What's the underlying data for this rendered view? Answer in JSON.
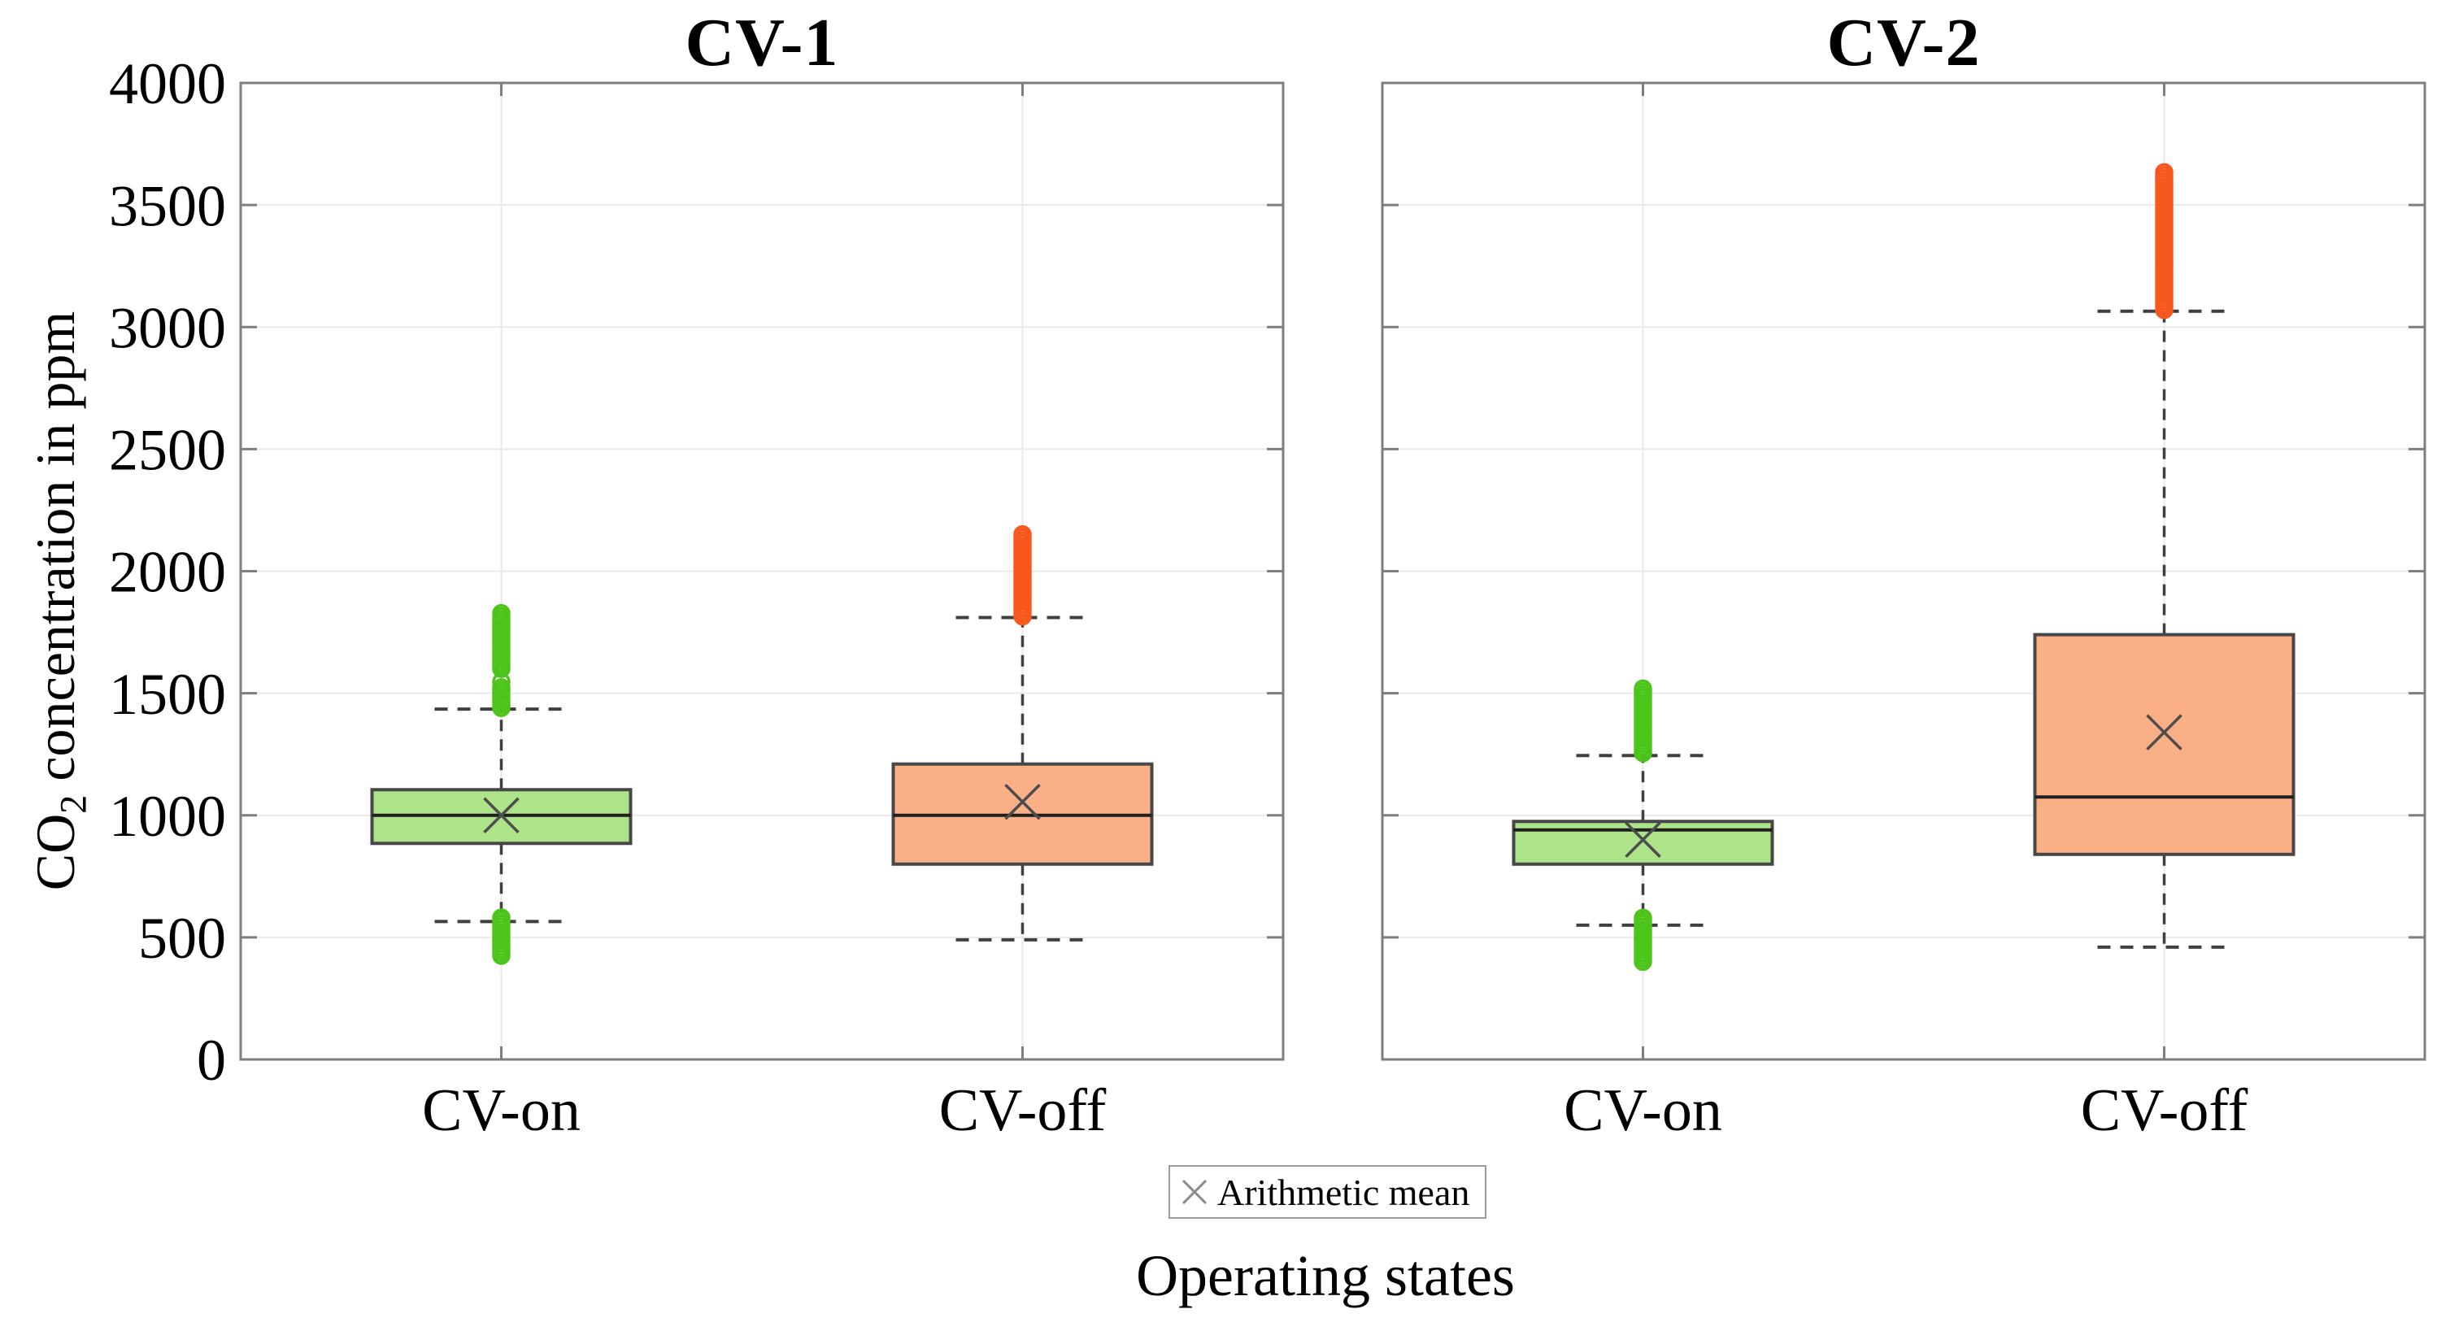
{
  "figure": {
    "background": "#ffffff"
  },
  "colors": {
    "green_fill": "#ADE389",
    "green_marker": "#4CC41A",
    "orange_fill": "#FBAF86",
    "orange_marker": "#F8571E",
    "box_edge": "#474747",
    "median_line": "#1f1f1f",
    "whisker": "#3f3f3f",
    "mean_marker": "#4d4d4d",
    "axis_spine": "#7e7e7e",
    "gridline": "#e9e9e9",
    "tick_text": "#000000",
    "legend_border": "#9a9a9a",
    "legend_marker": "#8a8a8a"
  },
  "chart_data": {
    "type": "boxplot",
    "xlabel": "Operating states",
    "ylabel": {
      "prefix": "CO",
      "sub": "2",
      "suffix": " concentration in ppm"
    },
    "legend_label": "Arithmetic mean",
    "legend_position": "below-center",
    "ylim": [
      0,
      4000
    ],
    "y_ticks": [
      0,
      500,
      1000,
      1500,
      2000,
      2500,
      3000,
      3500,
      4000
    ],
    "grid": true,
    "subplots": [
      {
        "title": "CV-1",
        "categories": [
          "CV-on",
          "CV-off"
        ],
        "boxes": [
          {
            "category": "CV-on",
            "color_key": "green",
            "whisker_low": 565,
            "q1": 885,
            "median": 1000,
            "q3": 1105,
            "whisker_high": 1435,
            "mean": 1000,
            "outliers_high": [
              [
                1440,
                1530
              ],
              [
                1547,
                1553
              ],
              [
                1600,
                1835
              ]
            ],
            "outliers_low": [
              [
                425,
                585
              ]
            ]
          },
          {
            "category": "CV-off",
            "color_key": "orange",
            "whisker_low": 490,
            "q1": 800,
            "median": 1000,
            "q3": 1210,
            "whisker_high": 1810,
            "mean": 1055,
            "outliers_high": [
              [
                1815,
                2155
              ]
            ],
            "outliers_low": []
          }
        ]
      },
      {
        "title": "CV-2",
        "categories": [
          "CV-on",
          "CV-off"
        ],
        "boxes": [
          {
            "category": "CV-on",
            "color_key": "green",
            "whisker_low": 550,
            "q1": 800,
            "median": 940,
            "q3": 975,
            "whisker_high": 1245,
            "mean": 900,
            "outliers_high": [
              [
                1255,
                1530
              ]
            ],
            "outliers_low": [
              [
                400,
                580
              ]
            ]
          },
          {
            "category": "CV-off",
            "color_key": "orange",
            "whisker_low": 460,
            "q1": 840,
            "median": 1075,
            "q3": 1740,
            "whisker_high": 3065,
            "mean": 1340,
            "outliers_high": [
              [
                3070,
                3645
              ]
            ],
            "outliers_low": []
          }
        ]
      }
    ]
  }
}
